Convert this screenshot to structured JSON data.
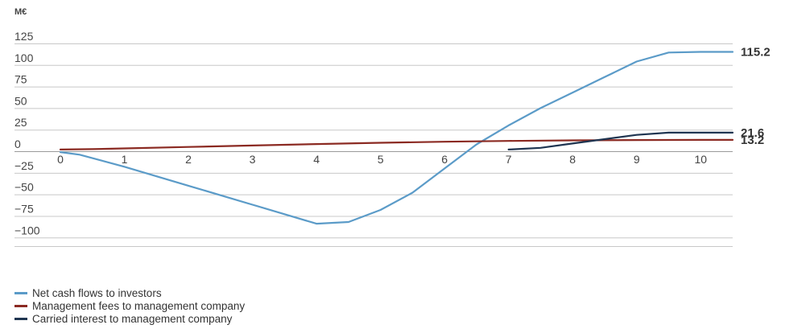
{
  "chart_data": {
    "type": "line",
    "unit_label": "M€",
    "x": [
      0,
      0.3,
      1,
      2,
      3,
      4,
      4.5,
      5,
      5.5,
      6,
      6.5,
      7,
      7.5,
      8,
      8.5,
      9,
      9.5,
      10,
      10.5
    ],
    "xlim": [
      0,
      10.5
    ],
    "ylim": [
      -110,
      125
    ],
    "x_ticks": [
      0,
      1,
      2,
      3,
      4,
      5,
      6,
      7,
      8,
      9,
      10
    ],
    "y_ticks": [
      125,
      100,
      75,
      50,
      25,
      0,
      -25,
      -50,
      -75,
      -100
    ],
    "y_tick_labels": [
      "125",
      "100",
      "75",
      "50",
      "25",
      "0",
      "−25",
      "−50",
      "−75",
      "−100"
    ],
    "grid": true,
    "series": [
      {
        "name": "Net cash flows to investors",
        "color": "#5b9bc8",
        "points": [
          [
            0,
            -1
          ],
          [
            0.3,
            -4
          ],
          [
            1,
            -18
          ],
          [
            2,
            -40
          ],
          [
            3,
            -62
          ],
          [
            4,
            -84
          ],
          [
            4.5,
            -82
          ],
          [
            5,
            -68
          ],
          [
            5.5,
            -48
          ],
          [
            6,
            -20
          ],
          [
            6.5,
            8
          ],
          [
            7,
            30
          ],
          [
            7.5,
            50
          ],
          [
            8,
            68
          ],
          [
            8.5,
            86
          ],
          [
            9,
            104
          ],
          [
            9.5,
            114.5
          ],
          [
            10,
            115.2
          ],
          [
            10.5,
            115.2
          ]
        ]
      },
      {
        "name": "Management fees to management company",
        "color": "#8b2a22",
        "points": [
          [
            0,
            2
          ],
          [
            0.5,
            2.5
          ],
          [
            1,
            3.3
          ],
          [
            2,
            5
          ],
          [
            3,
            6.7
          ],
          [
            4,
            8.3
          ],
          [
            5,
            9.8
          ],
          [
            6,
            11
          ],
          [
            7,
            12
          ],
          [
            8,
            12.6
          ],
          [
            9,
            13
          ],
          [
            10,
            13.2
          ],
          [
            10.5,
            13.2
          ]
        ]
      },
      {
        "name": "Carried interest to management company",
        "color": "#1f3551",
        "points": [
          [
            7,
            2
          ],
          [
            7.5,
            4
          ],
          [
            8,
            9
          ],
          [
            8.5,
            14
          ],
          [
            9,
            19
          ],
          [
            9.5,
            21.6
          ],
          [
            10.5,
            21.6
          ]
        ]
      }
    ],
    "end_labels": [
      {
        "text": "115.2",
        "value": 115.2
      },
      {
        "text": "21.6",
        "value": 21.6
      },
      {
        "text": "13.2",
        "value": 13.2
      }
    ]
  }
}
